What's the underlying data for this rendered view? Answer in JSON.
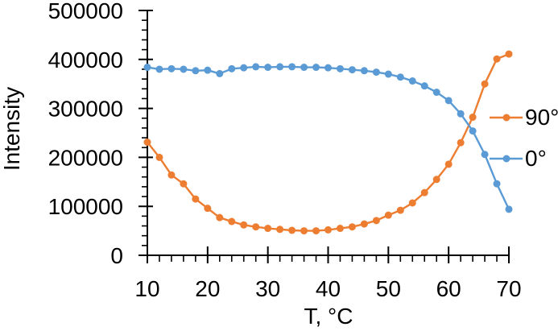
{
  "chart_data": {
    "type": "line",
    "title": "",
    "xlabel": "T, °C",
    "ylabel": "Intensity",
    "x": [
      10,
      12,
      14,
      16,
      18,
      20,
      22,
      24,
      26,
      28,
      30,
      32,
      34,
      36,
      38,
      40,
      42,
      44,
      46,
      48,
      50,
      52,
      54,
      56,
      58,
      60,
      62,
      64,
      66,
      68,
      70
    ],
    "series": [
      {
        "name": "90°",
        "color": "#ED7D31",
        "values": [
          231000,
          200000,
          164000,
          146000,
          115000,
          96000,
          77000,
          69000,
          62000,
          58000,
          55000,
          53000,
          51000,
          50000,
          50000,
          52000,
          55000,
          58000,
          64000,
          71000,
          82000,
          92000,
          107000,
          128000,
          155000,
          186000,
          230000,
          282000,
          350000,
          401000,
          411000
        ]
      },
      {
        "name": "0°",
        "color": "#5B9BD5",
        "values": [
          384000,
          380000,
          381000,
          380000,
          377000,
          378000,
          371000,
          381000,
          383000,
          385000,
          384000,
          385000,
          385000,
          384000,
          384000,
          383000,
          381000,
          379000,
          377000,
          374000,
          370000,
          364000,
          356000,
          346000,
          333000,
          316000,
          289000,
          254000,
          206000,
          146000,
          94000
        ]
      }
    ],
    "xlim": [
      10,
      70
    ],
    "ylim": [
      0,
      500000
    ],
    "x_tick_major": 10,
    "x_tick_minor": 2,
    "y_tick_major": 100000,
    "y_tick_minor": 20000,
    "x_tick_labels": [
      "10",
      "20",
      "30",
      "40",
      "50",
      "60",
      "70"
    ],
    "y_tick_labels": [
      "0",
      "100000",
      "200000",
      "300000",
      "400000",
      "500000"
    ],
    "grid": false,
    "legend_position": "right",
    "marker": "circle",
    "axis_color": "#000000",
    "text_color": "#000000",
    "background": "#FFFFFF"
  }
}
